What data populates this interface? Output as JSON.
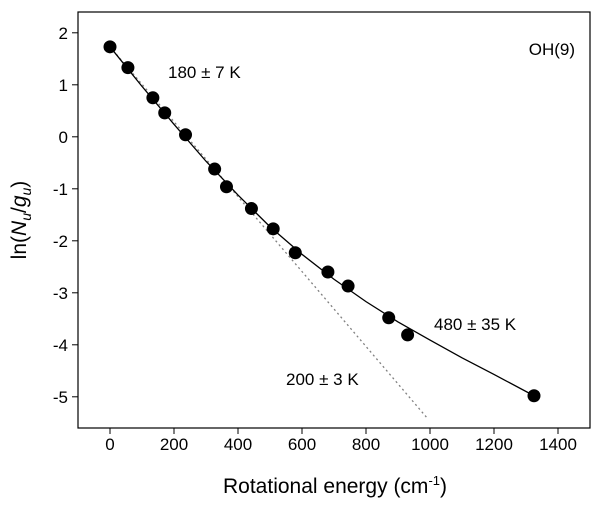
{
  "chart_data": {
    "type": "scatter",
    "xlabel": [
      "Rotational energy (cm",
      "-1",
      ")"
    ],
    "ylabel": [
      "ln(",
      "N",
      "u",
      "/",
      "g",
      "u",
      ")"
    ],
    "annotations": [
      "OH(9)",
      "180 ± 7 K",
      "480 ± 35 K",
      "200 ± 3 K"
    ],
    "annotation_colors": [
      "#000000",
      "#000000",
      "#000000",
      "#808080"
    ],
    "points": {
      "color": "#000000",
      "x": [
        0,
        56,
        134,
        171,
        236,
        327,
        364,
        442,
        510,
        579,
        681,
        744,
        871,
        930,
        1325
      ],
      "y": [
        1.73,
        1.33,
        0.75,
        0.46,
        0.04,
        -0.62,
        -0.96,
        -1.38,
        -1.77,
        -2.23,
        -2.6,
        -2.87,
        -3.48,
        -3.81,
        -4.98
      ]
    },
    "fit": {
      "color": "#000000",
      "x": [
        0,
        100,
        200,
        300,
        400,
        500,
        600,
        700,
        800,
        900,
        1000,
        1100,
        1200,
        1325
      ],
      "y": [
        1.73,
        0.97,
        0.24,
        -0.47,
        -1.12,
        -1.73,
        -2.26,
        -2.74,
        -3.17,
        -3.56,
        -3.91,
        -4.25,
        -4.57,
        -4.98
      ]
    },
    "extrapolation": {
      "color": "#808080",
      "x": [
        0,
        990
      ],
      "y": [
        1.73,
        -5.4
      ]
    },
    "xlim": [
      -100,
      1500
    ],
    "ylim": [
      -5.6,
      2.4
    ],
    "xticks": [
      0,
      200,
      400,
      600,
      800,
      1000,
      1200,
      1400
    ],
    "yticks": [
      -5,
      -4,
      -3,
      -2,
      -1,
      0,
      1,
      2
    ]
  }
}
